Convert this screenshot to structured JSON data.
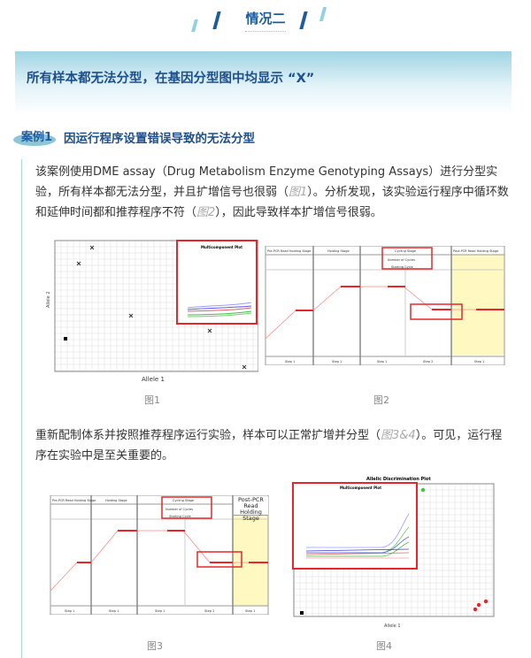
{
  "section": {
    "title": "情况二"
  },
  "banner": {
    "text": "所有样本都无法分型，在基因分型图中均显示 “X”"
  },
  "case": {
    "label": "案例1",
    "title": "因运行程序设置错误导致的无法分型",
    "paragraph1": {
      "before1": "该案例使用DME assay（Drug Metabolism Enzyme Genotyping Assays）进行分型实验，所有样本都无法分型，并且扩增信号也很弱（",
      "ref1": "图1",
      "between": "）。分析发现，该实验运行程序中循环数和延伸时间都和推荐程序不符（",
      "ref2": "图2",
      "after": "），因此导致样本扩增信号很弱。"
    },
    "paragraph2": {
      "before": "重新配制体系并按照推荐程序运行实验，样本可以正常扩增并分型（",
      "ref": "图3&4",
      "after": "）。可见，运行程序在实验中是至关重要的。"
    }
  },
  "figures": {
    "fig1": {
      "caption": "图1",
      "inset_title": "Multicomponent Plot",
      "xlabel": "Allele 1",
      "ylabel": "Allele 2"
    },
    "fig2": {
      "caption": "图2",
      "stages": [
        "Pre-PCR Read Holding Stage",
        "Holding Stage",
        "Cycling Stage",
        "Post-PCR Read Holding Stage"
      ],
      "steps": [
        "Step 1",
        "Step 1",
        "Step 1",
        "Step 2",
        "Step 1"
      ],
      "cycles_label": "Number of Cycles",
      "starting_label": "Starting Cycle"
    },
    "fig3": {
      "caption": "图3",
      "stages": [
        "Pre-PCR Read Holding Stage",
        "Holding Stage",
        "Cycling Stage",
        "Post-PCR Read Holding Stage"
      ],
      "steps": [
        "Step 1",
        "Step 1",
        "Step 1",
        "Step 2",
        "Step 1"
      ],
      "cycles_label": "Number of Cycles",
      "starting_label": "Starting Cycle"
    },
    "fig4": {
      "caption": "图4",
      "title": "Allelic Discrimination Plot",
      "inset_title": "Multicomponent Plot",
      "xlabel": "Allele 1"
    }
  },
  "colors": {
    "accent": "#1d5c9e",
    "highlight_box": "#e8262a"
  }
}
